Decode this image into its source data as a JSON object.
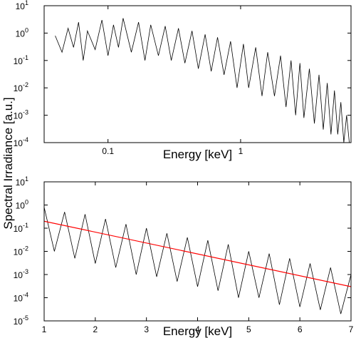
{
  "chart_data": [
    {
      "type": "line",
      "xlabel": "Energy [keV]",
      "ylabel": "Spectral Irradiance [a.u.]",
      "xlog": true,
      "ylog": true,
      "xlim": [
        0.033,
        6.8
      ],
      "xticks": [
        0.1,
        1
      ],
      "ylim": [
        0.0001,
        10
      ],
      "yticks": [
        {
          "value": 0.0001,
          "label": "10",
          "exponent": "-4"
        },
        {
          "value": 0.001,
          "label": "10",
          "exponent": "-3"
        },
        {
          "value": 0.01,
          "label": "10",
          "exponent": "-2"
        },
        {
          "value": 0.1,
          "label": "10",
          "exponent": "-1"
        },
        {
          "value": 1,
          "label": "10",
          "exponent": "0"
        },
        {
          "value": 10,
          "label": "10",
          "exponent": "1"
        }
      ],
      "series": [
        {
          "color": "#000000",
          "x": [
            0.04,
            0.045,
            0.05,
            0.055,
            0.06,
            0.065,
            0.07,
            0.08,
            0.09,
            0.1,
            0.11,
            0.12,
            0.13,
            0.15,
            0.17,
            0.19,
            0.21,
            0.24,
            0.27,
            0.3,
            0.34,
            0.38,
            0.43,
            0.48,
            0.54,
            0.6,
            0.67,
            0.75,
            0.84,
            0.94,
            1.05,
            1.15,
            1.3,
            1.45,
            1.6,
            1.8,
            2.0,
            2.2,
            2.4,
            2.6,
            2.8,
            3.0,
            3.3,
            3.6,
            3.9,
            4.2,
            4.5,
            4.8,
            5.1,
            5.4,
            5.7,
            6.0,
            6.3,
            6.6
          ],
          "values": [
            0.8,
            0.2,
            1.5,
            0.3,
            2.5,
            0.1,
            1.2,
            0.25,
            3,
            0.15,
            2,
            0.3,
            3.5,
            0.2,
            2.5,
            0.1,
            2,
            0.15,
            1.8,
            0.1,
            1.5,
            0.08,
            1.2,
            0.05,
            0.9,
            0.04,
            0.7,
            0.03,
            0.5,
            0.01,
            0.4,
            0.01,
            0.3,
            0.005,
            0.2,
            0.005,
            0.15,
            0.002,
            0.1,
            0.001,
            0.08,
            0.0008,
            0.05,
            0.0005,
            0.03,
            0.0003,
            0.015,
            0.0002,
            0.008,
            0.0002,
            0.003,
            0.0001,
            0.001,
            0.0001
          ]
        }
      ]
    },
    {
      "type": "line",
      "xlabel": "Energy [keV]",
      "xlog": false,
      "ylog": true,
      "xlim": [
        1,
        7
      ],
      "xticks": [
        1,
        2,
        3,
        4,
        5,
        6,
        7
      ],
      "ylim": [
        1e-05,
        10
      ],
      "yticks": [
        {
          "value": 1e-05,
          "label": "10",
          "exponent": "-5"
        },
        {
          "value": 0.0001,
          "label": "10",
          "exponent": "-4"
        },
        {
          "value": 0.001,
          "label": "10",
          "exponent": "-3"
        },
        {
          "value": 0.01,
          "label": "10",
          "exponent": "-2"
        },
        {
          "value": 0.1,
          "label": "10",
          "exponent": "-1"
        },
        {
          "value": 1,
          "label": "10",
          "exponent": "0"
        },
        {
          "value": 10,
          "label": "10",
          "exponent": "1"
        }
      ],
      "series": [
        {
          "color": "#000000",
          "x": [
            1,
            1.2,
            1.4,
            1.6,
            1.8,
            2.0,
            2.2,
            2.4,
            2.6,
            2.8,
            3.0,
            3.2,
            3.4,
            3.6,
            3.8,
            4.0,
            4.2,
            4.4,
            4.6,
            4.8,
            5.0,
            5.2,
            5.4,
            5.6,
            5.8,
            6.0,
            6.2,
            6.4,
            6.6,
            6.8,
            7.0
          ],
          "values": [
            0.8,
            0.01,
            0.5,
            0.005,
            0.4,
            0.003,
            0.25,
            0.002,
            0.15,
            0.001,
            0.1,
            0.0008,
            0.06,
            0.0005,
            0.04,
            0.0003,
            0.03,
            0.0002,
            0.02,
            0.0001,
            0.01,
            0.0001,
            0.008,
            5e-05,
            0.005,
            4e-05,
            0.003,
            3e-05,
            0.002,
            2e-05,
            0.001
          ]
        },
        {
          "color": "#ff0000",
          "x": [
            1,
            7
          ],
          "values": [
            0.2,
            0.0003
          ]
        }
      ]
    }
  ]
}
